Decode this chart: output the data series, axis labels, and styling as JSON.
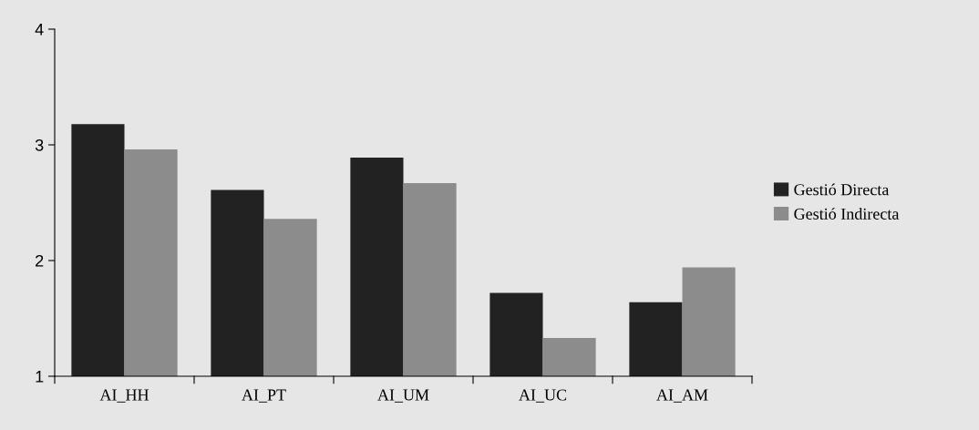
{
  "chart_data": {
    "type": "bar",
    "categories": [
      "AI_HH",
      "AI_PT",
      "AI_UM",
      "AI_UC",
      "AI_AM"
    ],
    "series": [
      {
        "name": "Gestió Directa",
        "color": "#222222",
        "values": [
          3.18,
          2.61,
          2.89,
          1.72,
          1.64
        ]
      },
      {
        "name": "Gestió Indirecta",
        "color": "#8c8c8c",
        "values": [
          2.96,
          2.36,
          2.67,
          1.33,
          1.94
        ]
      }
    ],
    "ylim": [
      1,
      4
    ],
    "yticks": [
      1,
      2,
      3,
      4
    ],
    "grid": false,
    "legend": "right"
  }
}
